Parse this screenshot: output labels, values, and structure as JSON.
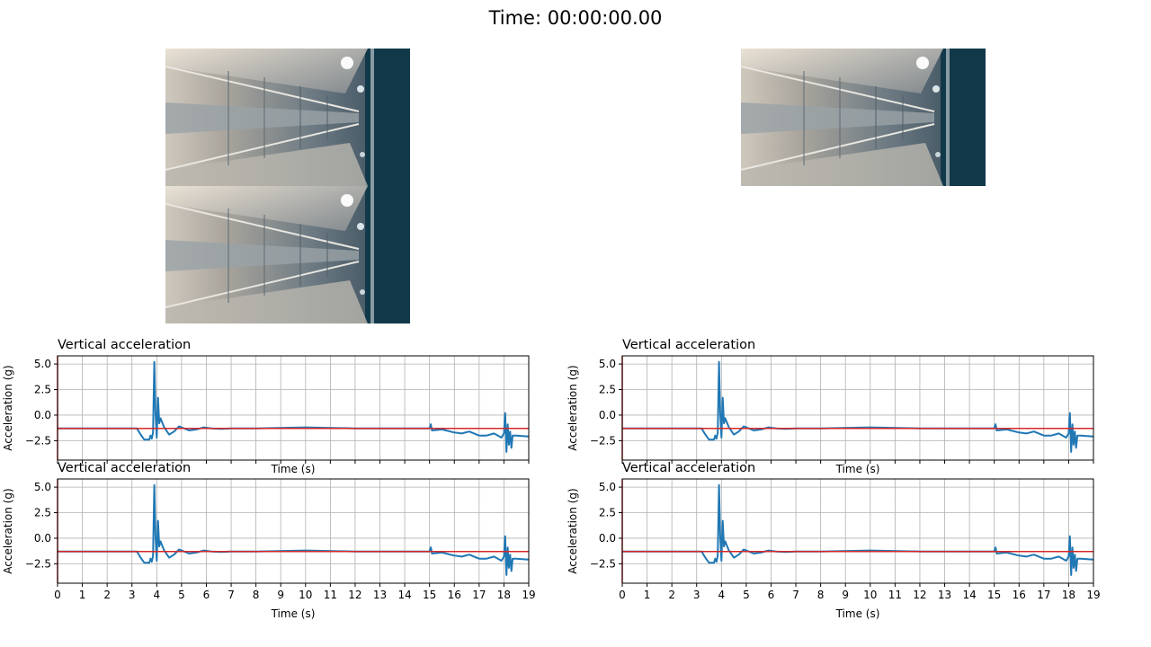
{
  "header": {
    "time_label": "Time: 00:00:00.00"
  },
  "videos": [
    {
      "name": "video-frame-top-left"
    },
    {
      "name": "video-frame-bottom-left"
    },
    {
      "name": "video-frame-top-right"
    }
  ],
  "colors": {
    "signal": "#1f77b4",
    "marker": "#d62728",
    "grid": "#b0b0b0"
  },
  "chart_data": [
    {
      "type": "line",
      "title": "Vertical acceleration",
      "xlabel": "Time (s)",
      "ylabel": "Acceleration (g)",
      "xlim": [
        0,
        19
      ],
      "ylim": [
        -4.4,
        5.8
      ],
      "xticks": [
        0,
        1,
        2,
        3,
        4,
        5,
        6,
        7,
        8,
        9,
        10,
        11,
        12,
        13,
        14,
        15,
        16,
        17,
        18,
        19
      ],
      "yticks": [
        5.0,
        2.5,
        0.0,
        -2.5
      ],
      "ytick_labels": [
        "5.0",
        "2.5",
        "0.0",
        "−2.5"
      ],
      "grid": true,
      "show_xticklabels": false,
      "cursor_x": 0,
      "reference_y": -1.3,
      "series": [
        {
          "x": [
            0,
            3.2,
            3.35,
            3.5,
            3.7,
            3.75,
            3.8,
            3.85,
            3.9,
            3.95,
            4.0,
            4.05,
            4.1,
            4.15,
            4.2,
            4.3,
            4.5,
            4.7,
            4.9,
            5.0,
            5.3,
            5.6,
            5.9,
            6.2,
            6.6,
            7.0,
            8.0,
            10.0,
            12.0,
            14.0,
            15.0,
            15.05,
            15.1,
            15.5,
            16.0,
            16.3,
            16.6,
            17.0,
            17.3,
            17.6,
            17.9,
            18.0,
            18.05,
            18.1,
            18.15,
            18.2,
            18.25,
            18.3,
            18.35,
            18.5,
            19.0
          ],
          "y": [
            -1.3,
            -1.3,
            -1.9,
            -2.4,
            -2.4,
            -2.0,
            -2.3,
            -1.7,
            5.2,
            0.3,
            -2.2,
            1.7,
            -0.8,
            -0.3,
            -0.6,
            -1.2,
            -1.9,
            -1.6,
            -1.1,
            -1.2,
            -1.5,
            -1.4,
            -1.2,
            -1.3,
            -1.35,
            -1.3,
            -1.3,
            -1.2,
            -1.3,
            -1.3,
            -1.3,
            -0.9,
            -1.5,
            -1.4,
            -1.7,
            -1.8,
            -1.6,
            -2.0,
            -2.0,
            -1.8,
            -2.2,
            -1.8,
            0.2,
            -3.6,
            -0.9,
            -2.9,
            -1.6,
            -3.2,
            -2.0,
            -2.0,
            -2.1
          ]
        }
      ]
    },
    {
      "type": "line",
      "title": "Vertical acceleration",
      "xlabel": "Time (s)",
      "ylabel": "Acceleration (g)",
      "xlim": [
        0,
        19
      ],
      "ylim": [
        -4.4,
        5.8
      ],
      "xticks": [
        0,
        1,
        2,
        3,
        4,
        5,
        6,
        7,
        8,
        9,
        10,
        11,
        12,
        13,
        14,
        15,
        16,
        17,
        18,
        19
      ],
      "yticks": [
        5.0,
        2.5,
        0.0,
        -2.5
      ],
      "ytick_labels": [
        "5.0",
        "2.5",
        "0.0",
        "−2.5"
      ],
      "grid": true,
      "show_xticklabels": false,
      "cursor_x": 0,
      "reference_y": -1.3,
      "series": [
        {
          "x": [
            0,
            3.2,
            3.35,
            3.5,
            3.7,
            3.75,
            3.8,
            3.85,
            3.9,
            3.95,
            4.0,
            4.05,
            4.1,
            4.15,
            4.2,
            4.3,
            4.5,
            4.7,
            4.9,
            5.0,
            5.3,
            5.6,
            5.9,
            6.2,
            6.6,
            7.0,
            8.0,
            10.0,
            12.0,
            14.0,
            15.0,
            15.05,
            15.1,
            15.5,
            16.0,
            16.3,
            16.6,
            17.0,
            17.3,
            17.6,
            17.9,
            18.0,
            18.05,
            18.1,
            18.15,
            18.2,
            18.25,
            18.3,
            18.35,
            18.5,
            19.0
          ],
          "y": [
            -1.3,
            -1.3,
            -1.9,
            -2.4,
            -2.4,
            -2.0,
            -2.3,
            -1.7,
            5.2,
            0.3,
            -2.2,
            1.7,
            -0.8,
            -0.3,
            -0.6,
            -1.2,
            -1.9,
            -1.6,
            -1.1,
            -1.2,
            -1.5,
            -1.4,
            -1.2,
            -1.3,
            -1.35,
            -1.3,
            -1.3,
            -1.2,
            -1.3,
            -1.3,
            -1.3,
            -0.9,
            -1.5,
            -1.4,
            -1.7,
            -1.8,
            -1.6,
            -2.0,
            -2.0,
            -1.8,
            -2.2,
            -1.8,
            0.2,
            -3.6,
            -0.9,
            -2.9,
            -1.6,
            -3.2,
            -2.0,
            -2.0,
            -2.1
          ]
        }
      ]
    },
    {
      "type": "line",
      "title": "Vertical acceleration",
      "xlabel": "Time (s)",
      "ylabel": "Acceleration (g)",
      "xlim": [
        0,
        19
      ],
      "ylim": [
        -4.4,
        5.8
      ],
      "xticks": [
        0,
        1,
        2,
        3,
        4,
        5,
        6,
        7,
        8,
        9,
        10,
        11,
        12,
        13,
        14,
        15,
        16,
        17,
        18,
        19
      ],
      "yticks": [
        5.0,
        2.5,
        0.0,
        -2.5
      ],
      "ytick_labels": [
        "5.0",
        "2.5",
        "0.0",
        "−2.5"
      ],
      "grid": true,
      "show_xticklabels": true,
      "cursor_x": 0,
      "reference_y": -1.3,
      "series": [
        {
          "x": [
            0,
            3.2,
            3.35,
            3.5,
            3.7,
            3.75,
            3.8,
            3.85,
            3.9,
            3.95,
            4.0,
            4.05,
            4.1,
            4.15,
            4.2,
            4.3,
            4.5,
            4.7,
            4.9,
            5.0,
            5.3,
            5.6,
            5.9,
            6.2,
            6.6,
            7.0,
            8.0,
            10.0,
            12.0,
            14.0,
            15.0,
            15.05,
            15.1,
            15.5,
            16.0,
            16.3,
            16.6,
            17.0,
            17.3,
            17.6,
            17.9,
            18.0,
            18.05,
            18.1,
            18.15,
            18.2,
            18.25,
            18.3,
            18.35,
            18.5,
            19.0
          ],
          "y": [
            -1.3,
            -1.3,
            -1.9,
            -2.4,
            -2.4,
            -2.0,
            -2.3,
            -1.7,
            5.2,
            0.3,
            -2.2,
            1.7,
            -0.8,
            -0.3,
            -0.6,
            -1.2,
            -1.9,
            -1.6,
            -1.1,
            -1.2,
            -1.5,
            -1.4,
            -1.2,
            -1.3,
            -1.35,
            -1.3,
            -1.3,
            -1.2,
            -1.3,
            -1.3,
            -1.3,
            -0.9,
            -1.5,
            -1.4,
            -1.7,
            -1.8,
            -1.6,
            -2.0,
            -2.0,
            -1.8,
            -2.2,
            -1.8,
            0.2,
            -3.6,
            -0.9,
            -2.9,
            -1.6,
            -3.2,
            -2.0,
            -2.0,
            -2.1
          ]
        }
      ]
    },
    {
      "type": "line",
      "title": "Vertical acceleration",
      "xlabel": "Time (s)",
      "ylabel": "Acceleration (g)",
      "xlim": [
        0,
        19
      ],
      "ylim": [
        -4.4,
        5.8
      ],
      "xticks": [
        0,
        1,
        2,
        3,
        4,
        5,
        6,
        7,
        8,
        9,
        10,
        11,
        12,
        13,
        14,
        15,
        16,
        17,
        18,
        19
      ],
      "yticks": [
        5.0,
        2.5,
        0.0,
        -2.5
      ],
      "ytick_labels": [
        "5.0",
        "2.5",
        "0.0",
        "−2.5"
      ],
      "grid": true,
      "show_xticklabels": true,
      "cursor_x": 0,
      "reference_y": -1.3,
      "series": [
        {
          "x": [
            0,
            3.2,
            3.35,
            3.5,
            3.7,
            3.75,
            3.8,
            3.85,
            3.9,
            3.95,
            4.0,
            4.05,
            4.1,
            4.15,
            4.2,
            4.3,
            4.5,
            4.7,
            4.9,
            5.0,
            5.3,
            5.6,
            5.9,
            6.2,
            6.6,
            7.0,
            8.0,
            10.0,
            12.0,
            14.0,
            15.0,
            15.05,
            15.1,
            15.5,
            16.0,
            16.3,
            16.6,
            17.0,
            17.3,
            17.6,
            17.9,
            18.0,
            18.05,
            18.1,
            18.15,
            18.2,
            18.25,
            18.3,
            18.35,
            18.5,
            19.0
          ],
          "y": [
            -1.3,
            -1.3,
            -1.9,
            -2.4,
            -2.4,
            -2.0,
            -2.3,
            -1.7,
            5.2,
            0.3,
            -2.2,
            1.7,
            -0.8,
            -0.3,
            -0.6,
            -1.2,
            -1.9,
            -1.6,
            -1.1,
            -1.2,
            -1.5,
            -1.4,
            -1.2,
            -1.3,
            -1.35,
            -1.3,
            -1.3,
            -1.2,
            -1.3,
            -1.3,
            -1.3,
            -0.9,
            -1.5,
            -1.4,
            -1.7,
            -1.8,
            -1.6,
            -2.0,
            -2.0,
            -1.8,
            -2.2,
            -1.8,
            0.2,
            -3.6,
            -0.9,
            -2.9,
            -1.6,
            -3.2,
            -2.0,
            -2.0,
            -2.1
          ]
        }
      ]
    }
  ]
}
